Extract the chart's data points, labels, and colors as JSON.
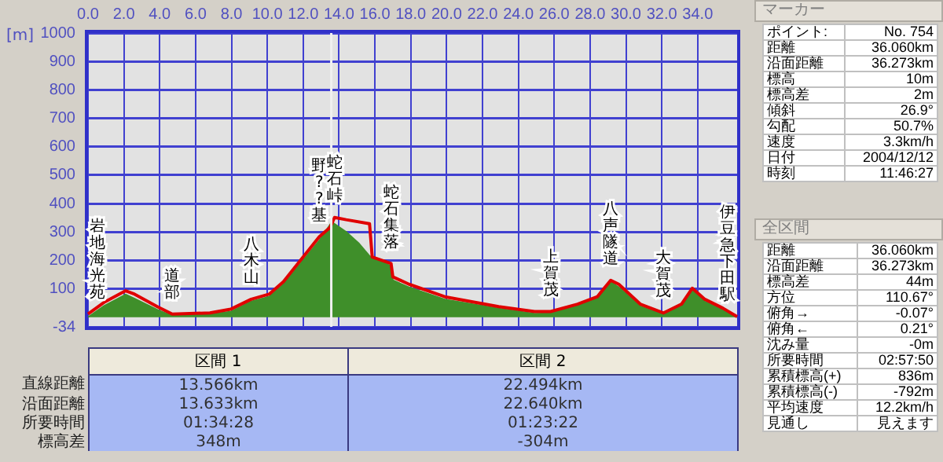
{
  "chart_data": [
    {
      "type": "area",
      "ylabel": "[m]",
      "grid": true,
      "xlim": [
        0,
        36.2
      ],
      "xticks": [
        {
          "value": 0,
          "label": "0.0"
        },
        {
          "value": 2,
          "label": "2.0"
        },
        {
          "value": 4,
          "label": "4.0"
        },
        {
          "value": 6,
          "label": "6.0"
        },
        {
          "value": 8,
          "label": "8.0"
        },
        {
          "value": 10,
          "label": "10.0"
        },
        {
          "value": 12,
          "label": "12.0"
        },
        {
          "value": 14,
          "label": "14.0"
        },
        {
          "value": 16,
          "label": "16.0"
        },
        {
          "value": 18,
          "label": "18.0"
        },
        {
          "value": 20,
          "label": "20.0"
        },
        {
          "value": 22,
          "label": "22.0"
        },
        {
          "value": 24,
          "label": "24.0"
        },
        {
          "value": 26,
          "label": "26.0"
        },
        {
          "value": 28,
          "label": "28.0"
        },
        {
          "value": 30,
          "label": "30.0"
        },
        {
          "value": 32,
          "label": "32.0"
        },
        {
          "value": 34,
          "label": "34.0"
        }
      ],
      "ylim": [
        -34,
        1000
      ],
      "yticks": [
        -34,
        100,
        200,
        300,
        400,
        500,
        600,
        700,
        800,
        900,
        1000
      ],
      "series": [
        {
          "type": "area",
          "color": "#3f8f2a",
          "x": [
            0,
            0.9,
            2.1,
            2.6,
            3.9,
            4.7,
            6.8,
            8,
            9.1,
            10.1,
            10.9,
            12,
            12.9,
            13.6,
            14.4,
            15.1,
            15.7,
            16.9,
            17,
            17.9,
            19.9,
            22.9,
            24.9,
            25.8,
            27.3,
            28.4,
            29.15,
            29.6,
            30.8,
            32.1,
            33.1,
            33.7,
            34.4,
            35.4,
            36.2
          ],
          "values": [
            0,
            40,
            80,
            65,
            25,
            5,
            10,
            20,
            55,
            72,
            115,
            200,
            270,
            335,
            300,
            260,
            215,
            180,
            130,
            105,
            62,
            30,
            12,
            14,
            40,
            65,
            125,
            105,
            38,
            8,
            40,
            95,
            55,
            25,
            0
          ]
        },
        {
          "type": "line",
          "color": "#e00000",
          "x": [
            0,
            0.94,
            2.1,
            2.6,
            3.86,
            4.7,
            6.8,
            7.95,
            9.1,
            10.1,
            10.9,
            12,
            12.9,
            13.5,
            13.75,
            14.4,
            15.7,
            15.85,
            16.9,
            17,
            17.9,
            19.9,
            22.9,
            24.9,
            25.8,
            27.3,
            28.4,
            29.15,
            29.6,
            30.8,
            32.1,
            33.1,
            33.7,
            34.4,
            35.4,
            36.2
          ],
          "values": [
            11,
            54,
            93,
            81,
            37,
            11,
            15,
            28,
            63,
            81,
            125,
            212,
            283,
            316,
            351,
            343,
            329,
            212,
            189,
            142,
            116,
            72,
            37,
            20,
            20,
            46,
            72,
            130,
            116,
            46,
            15,
            46,
            102,
            63,
            32,
            2
          ]
        }
      ],
      "ref_lines": [
        {
          "axis": "x",
          "value": 13.566,
          "color": "#f0f0f0"
        }
      ],
      "annotations": [
        {
          "text": "岩地海光苑",
          "x": 0,
          "y": 11
        },
        {
          "text": "道部",
          "x": 4.7,
          "y": 11
        },
        {
          "text": "八木山",
          "x": 9.1,
          "y": 63
        },
        {
          "text": "野??基",
          "x": 12.9,
          "y": 283
        },
        {
          "text": "蛇石峠",
          "x": 13.75,
          "y": 351
        },
        {
          "text": "蛇石集落",
          "x": 16.9,
          "y": 189
        },
        {
          "text": "上賀茂",
          "x": 25.8,
          "y": 20
        },
        {
          "text": "八声隧道",
          "x": 29.15,
          "y": 130
        },
        {
          "text": "大賀茂",
          "x": 32.1,
          "y": 15
        },
        {
          "text": "伊豆急下田駅",
          "x": 36.2,
          "y": 2
        }
      ]
    },
    {
      "type": "other",
      "categories": [
        "区間 1",
        "区間 2"
      ],
      "y_categories": [
        "直線距離",
        "沿面距離",
        "所要時間",
        "標高差"
      ],
      "cell_labels": [
        [
          "13.566km",
          "22.494km"
        ],
        [
          "13.633km",
          "22.640km"
        ],
        [
          "01:34:28",
          "01:23:22"
        ],
        [
          "348m",
          "-304m"
        ]
      ]
    },
    {
      "type": "other",
      "title": "マーカー",
      "y_categories": [
        "ポイント:",
        "距離",
        "沿面距離",
        "標高",
        "標高差",
        "傾斜",
        "勾配",
        "速度",
        "日付",
        "時刻"
      ],
      "cell_labels": [
        [
          "No. 754"
        ],
        [
          "36.060km"
        ],
        [
          "36.273km"
        ],
        [
          "10m"
        ],
        [
          "2m"
        ],
        [
          "26.9°"
        ],
        [
          "50.7%"
        ],
        [
          "3.3km/h"
        ],
        [
          "2004/12/12"
        ],
        [
          "11:46:27"
        ]
      ]
    },
    {
      "type": "other",
      "title": "全区間",
      "y_categories": [
        "距離",
        "沿面距離",
        "標高差",
        "方位",
        "俯角→",
        "俯角←",
        "沈み量",
        "所要時間",
        "累積標高(+)",
        "累積標高(-)",
        "平均速度",
        "見通し"
      ],
      "cell_labels": [
        [
          "36.060km"
        ],
        [
          "36.273km"
        ],
        [
          "44m"
        ],
        [
          "110.67°"
        ],
        [
          "-0.07°"
        ],
        [
          "0.21°"
        ],
        [
          "-0m"
        ],
        [
          "02:57:50"
        ],
        [
          "836m"
        ],
        [
          "-792m"
        ],
        [
          "12.2km/h"
        ],
        [
          "見えます"
        ]
      ]
    }
  ]
}
